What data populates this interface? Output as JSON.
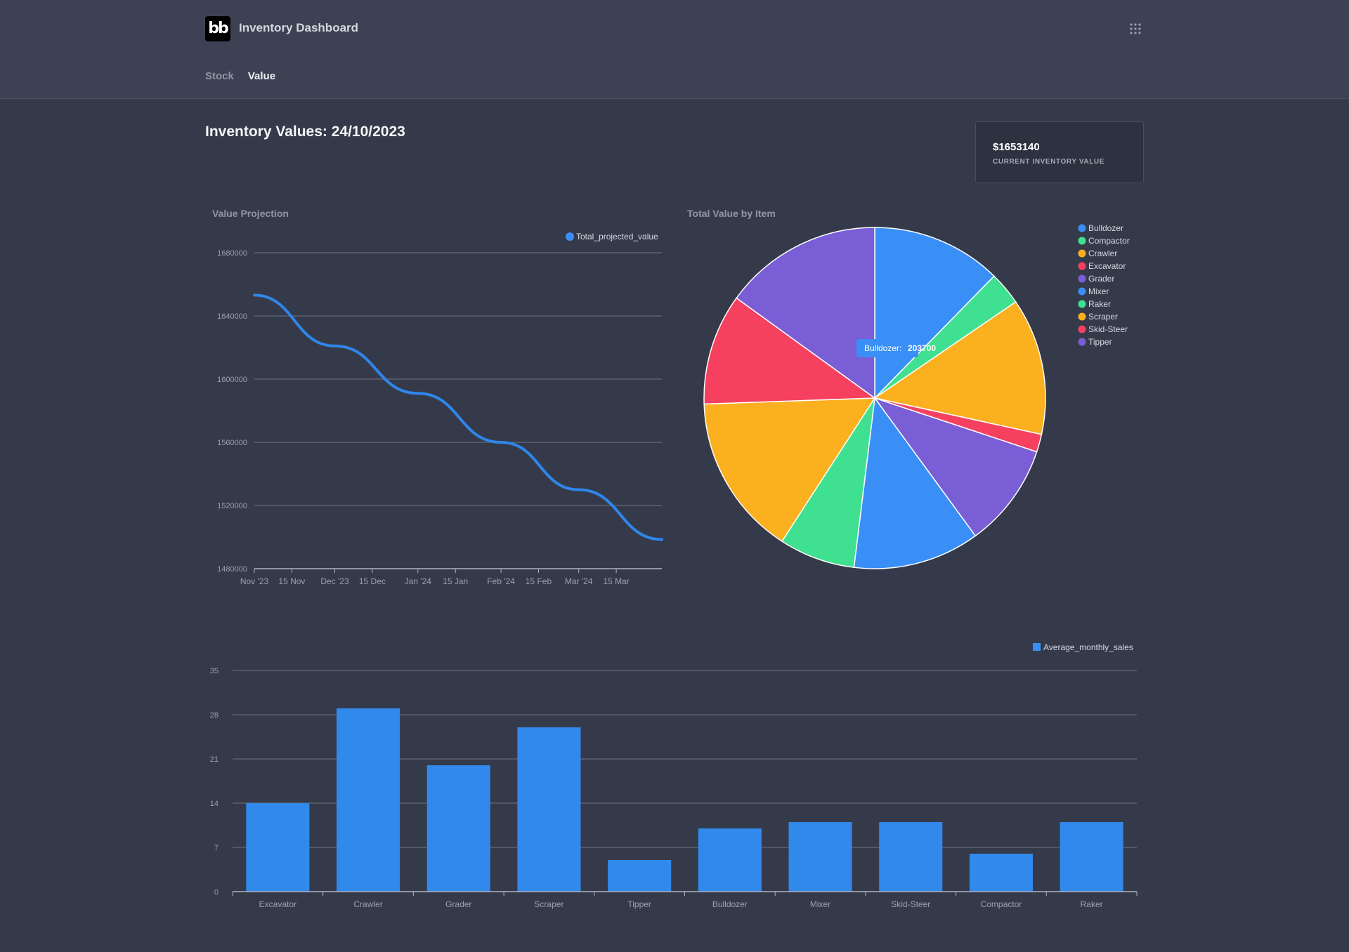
{
  "app": {
    "title": "Inventory Dashboard",
    "logo_text": "bb",
    "menu_icon": "grid-icon"
  },
  "nav": {
    "tabs": [
      {
        "label": "Stock",
        "active": false
      },
      {
        "label": "Value",
        "active": true
      }
    ]
  },
  "page": {
    "title": "Inventory Values: 24/10/2023"
  },
  "stat": {
    "value": "$1653140",
    "label": "CURRENT INVENTORY VALUE"
  },
  "colors": {
    "background": "#353a4a",
    "header": "#3c4253",
    "blue": "#3a8ff7",
    "green": "#3fe08f",
    "yellow": "#fbb01f",
    "red": "#f5415f",
    "purple": "#7a5ed6"
  },
  "chart_data": [
    {
      "type": "line",
      "title": "Value Projection",
      "series": [
        {
          "name": "Total_projected_value",
          "color": "#3a8ff7",
          "x": [
            "2023-11-01",
            "2023-12-01",
            "2024-01-01",
            "2024-02-01",
            "2024-03-01",
            "2024-04-01"
          ],
          "values": [
            1653140,
            1621000,
            1591000,
            1560000,
            1530000,
            1498500
          ]
        }
      ],
      "x_ticks": [
        "Nov '23",
        "15 Nov",
        "Dec '23",
        "15 Dec",
        "Jan '24",
        "15 Jan",
        "Feb '24",
        "15 Feb",
        "Mar '24",
        "15 Mar"
      ],
      "x_tick_dates": [
        "2023-11-01",
        "2023-11-15",
        "2023-12-01",
        "2023-12-15",
        "2024-01-01",
        "2024-01-15",
        "2024-02-01",
        "2024-02-15",
        "2024-03-01",
        "2024-03-15"
      ],
      "xlim": [
        "2023-11-01",
        "2024-04-01"
      ],
      "y_ticks": [
        1480000,
        1520000,
        1560000,
        1600000,
        1640000,
        1680000
      ],
      "ylim": [
        1480000,
        1680000
      ],
      "grid": true,
      "legend": "top-right"
    },
    {
      "type": "pie",
      "title": "Total Value by Item",
      "categories": [
        "Bulldozer",
        "Compactor",
        "Crawler",
        "Excavator",
        "Grader",
        "Mixer",
        "Raker",
        "Scraper",
        "Skid-Steer",
        "Tipper"
      ],
      "values": [
        203700,
        52000,
        214000,
        28000,
        163000,
        198000,
        119000,
        253000,
        174000,
        248440
      ],
      "colors": [
        "#3a8ff7",
        "#3fe08f",
        "#fbb01f",
        "#f5415f",
        "#7a5ed6",
        "#3a8ff7",
        "#3fe08f",
        "#fbb01f",
        "#f5415f",
        "#7a5ed6"
      ],
      "tooltip": {
        "label": "Bulldozer:",
        "value": "203700"
      },
      "legend": "right"
    },
    {
      "type": "bar",
      "title": "",
      "categories": [
        "Excavator",
        "Crawler",
        "Grader",
        "Scraper",
        "Tipper",
        "Bulldozer",
        "Mixer",
        "Skid-Steer",
        "Compactor",
        "Raker"
      ],
      "series": [
        {
          "name": "Average_monthly_sales",
          "color": "#3a8ff7",
          "values": [
            14,
            29,
            20,
            26,
            5,
            10,
            11,
            11,
            6,
            11
          ]
        }
      ],
      "y_ticks": [
        0,
        7,
        14,
        21,
        28,
        35
      ],
      "ylim": [
        0,
        35
      ],
      "grid": true,
      "legend": "top-right"
    }
  ]
}
